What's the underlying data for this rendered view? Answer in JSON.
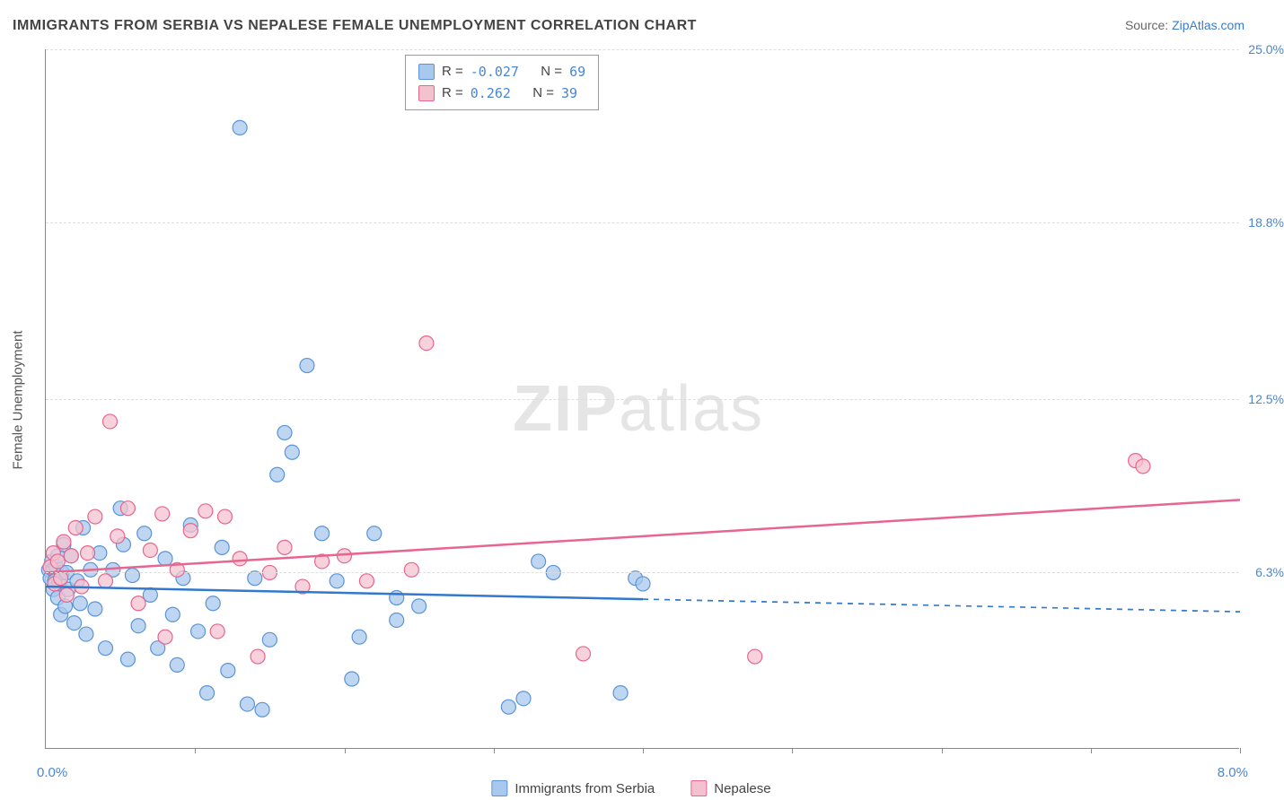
{
  "title": "IMMIGRANTS FROM SERBIA VS NEPALESE FEMALE UNEMPLOYMENT CORRELATION CHART",
  "source_prefix": "Source: ",
  "source_link": "ZipAtlas.com",
  "y_axis_title": "Female Unemployment",
  "watermark_zip": "ZIP",
  "watermark_atlas": "atlas",
  "chart": {
    "type": "scatter",
    "background_color": "#ffffff",
    "grid_color": "#dddddd",
    "axis_color": "#888888",
    "tick_label_color": "#4a86d0",
    "xlim": [
      0,
      8
    ],
    "ylim": [
      0,
      25
    ],
    "x_axis_min_label": "0.0%",
    "x_axis_max_label": "8.0%",
    "y_ticks": [
      {
        "value": 6.3,
        "label": "6.3%"
      },
      {
        "value": 12.5,
        "label": "12.5%"
      },
      {
        "value": 18.8,
        "label": "18.8%"
      },
      {
        "value": 25.0,
        "label": "25.0%"
      }
    ],
    "x_tick_positions": [
      1,
      2,
      3,
      4,
      5,
      6,
      7,
      8
    ],
    "marker_radius": 8,
    "marker_stroke_width": 1.2,
    "trend_line_width": 2.5,
    "series": {
      "serbia": {
        "label": "Immigrants from Serbia",
        "fill": "#a9c8ed",
        "stroke": "#5a94d6",
        "line_color": "#3278cc",
        "R_label": "R = ",
        "R_value": "-0.027",
        "N_label": "N = ",
        "N_value": "69",
        "trend": {
          "y_at_xmin": 5.8,
          "y_at_xmax": 4.9,
          "solid_until_x": 4.0
        },
        "points": [
          {
            "x": 0.02,
            "y": 6.4
          },
          {
            "x": 0.03,
            "y": 6.1
          },
          {
            "x": 0.04,
            "y": 6.7
          },
          {
            "x": 0.05,
            "y": 5.7
          },
          {
            "x": 0.05,
            "y": 6.4
          },
          {
            "x": 0.06,
            "y": 6.0
          },
          {
            "x": 0.07,
            "y": 6.5
          },
          {
            "x": 0.08,
            "y": 5.4
          },
          {
            "x": 0.08,
            "y": 6.9
          },
          {
            "x": 0.09,
            "y": 5.9
          },
          {
            "x": 0.1,
            "y": 4.8
          },
          {
            "x": 0.11,
            "y": 6.3
          },
          {
            "x": 0.12,
            "y": 7.3
          },
          {
            "x": 0.13,
            "y": 5.1
          },
          {
            "x": 0.14,
            "y": 6.3
          },
          {
            "x": 0.15,
            "y": 5.7
          },
          {
            "x": 0.17,
            "y": 6.9
          },
          {
            "x": 0.19,
            "y": 4.5
          },
          {
            "x": 0.21,
            "y": 6.0
          },
          {
            "x": 0.23,
            "y": 5.2
          },
          {
            "x": 0.25,
            "y": 7.9
          },
          {
            "x": 0.27,
            "y": 4.1
          },
          {
            "x": 0.3,
            "y": 6.4
          },
          {
            "x": 0.33,
            "y": 5.0
          },
          {
            "x": 0.36,
            "y": 7.0
          },
          {
            "x": 0.4,
            "y": 3.6
          },
          {
            "x": 0.45,
            "y": 6.4
          },
          {
            "x": 0.5,
            "y": 8.6
          },
          {
            "x": 0.52,
            "y": 7.3
          },
          {
            "x": 0.55,
            "y": 3.2
          },
          {
            "x": 0.58,
            "y": 6.2
          },
          {
            "x": 0.62,
            "y": 4.4
          },
          {
            "x": 0.66,
            "y": 7.7
          },
          {
            "x": 0.7,
            "y": 5.5
          },
          {
            "x": 0.75,
            "y": 3.6
          },
          {
            "x": 0.8,
            "y": 6.8
          },
          {
            "x": 0.85,
            "y": 4.8
          },
          {
            "x": 0.88,
            "y": 3.0
          },
          {
            "x": 0.92,
            "y": 6.1
          },
          {
            "x": 0.97,
            "y": 8.0
          },
          {
            "x": 1.02,
            "y": 4.2
          },
          {
            "x": 1.08,
            "y": 2.0
          },
          {
            "x": 1.12,
            "y": 5.2
          },
          {
            "x": 1.18,
            "y": 7.2
          },
          {
            "x": 1.22,
            "y": 2.8
          },
          {
            "x": 1.3,
            "y": 22.2
          },
          {
            "x": 1.35,
            "y": 1.6
          },
          {
            "x": 1.4,
            "y": 6.1
          },
          {
            "x": 1.45,
            "y": 1.4
          },
          {
            "x": 1.5,
            "y": 3.9
          },
          {
            "x": 1.55,
            "y": 9.8
          },
          {
            "x": 1.6,
            "y": 11.3
          },
          {
            "x": 1.65,
            "y": 10.6
          },
          {
            "x": 1.75,
            "y": 13.7
          },
          {
            "x": 1.85,
            "y": 7.7
          },
          {
            "x": 1.95,
            "y": 6.0
          },
          {
            "x": 2.05,
            "y": 2.5
          },
          {
            "x": 2.1,
            "y": 4.0
          },
          {
            "x": 2.2,
            "y": 7.7
          },
          {
            "x": 2.35,
            "y": 4.6
          },
          {
            "x": 2.35,
            "y": 5.4
          },
          {
            "x": 2.5,
            "y": 5.1
          },
          {
            "x": 3.1,
            "y": 1.5
          },
          {
            "x": 3.2,
            "y": 1.8
          },
          {
            "x": 3.3,
            "y": 6.7
          },
          {
            "x": 3.4,
            "y": 6.3
          },
          {
            "x": 3.85,
            "y": 2.0
          },
          {
            "x": 3.95,
            "y": 6.1
          },
          {
            "x": 4.0,
            "y": 5.9
          }
        ]
      },
      "nepalese": {
        "label": "Nepalese",
        "fill": "#f4c1cf",
        "stroke": "#e7658f",
        "line_color": "#e7658f",
        "R_label": "R = ",
        "R_value": " 0.262",
        "N_label": "N = ",
        "N_value": "39",
        "trend": {
          "y_at_xmin": 6.3,
          "y_at_xmax": 8.9,
          "solid_until_x": 8.0
        },
        "points": [
          {
            "x": 0.03,
            "y": 6.5
          },
          {
            "x": 0.05,
            "y": 7.0
          },
          {
            "x": 0.06,
            "y": 5.9
          },
          {
            "x": 0.08,
            "y": 6.7
          },
          {
            "x": 0.1,
            "y": 6.1
          },
          {
            "x": 0.12,
            "y": 7.4
          },
          {
            "x": 0.14,
            "y": 5.5
          },
          {
            "x": 0.17,
            "y": 6.9
          },
          {
            "x": 0.2,
            "y": 7.9
          },
          {
            "x": 0.24,
            "y": 5.8
          },
          {
            "x": 0.28,
            "y": 7.0
          },
          {
            "x": 0.33,
            "y": 8.3
          },
          {
            "x": 0.4,
            "y": 6.0
          },
          {
            "x": 0.43,
            "y": 11.7
          },
          {
            "x": 0.48,
            "y": 7.6
          },
          {
            "x": 0.55,
            "y": 8.6
          },
          {
            "x": 0.62,
            "y": 5.2
          },
          {
            "x": 0.7,
            "y": 7.1
          },
          {
            "x": 0.78,
            "y": 8.4
          },
          {
            "x": 0.8,
            "y": 4.0
          },
          {
            "x": 0.88,
            "y": 6.4
          },
          {
            "x": 0.97,
            "y": 7.8
          },
          {
            "x": 1.07,
            "y": 8.5
          },
          {
            "x": 1.15,
            "y": 4.2
          },
          {
            "x": 1.2,
            "y": 8.3
          },
          {
            "x": 1.3,
            "y": 6.8
          },
          {
            "x": 1.42,
            "y": 3.3
          },
          {
            "x": 1.5,
            "y": 6.3
          },
          {
            "x": 1.6,
            "y": 7.2
          },
          {
            "x": 1.72,
            "y": 5.8
          },
          {
            "x": 1.85,
            "y": 6.7
          },
          {
            "x": 2.0,
            "y": 6.9
          },
          {
            "x": 2.15,
            "y": 6.0
          },
          {
            "x": 2.45,
            "y": 6.4
          },
          {
            "x": 2.55,
            "y": 14.5
          },
          {
            "x": 3.6,
            "y": 3.4
          },
          {
            "x": 4.75,
            "y": 3.3
          },
          {
            "x": 7.3,
            "y": 10.3
          },
          {
            "x": 7.35,
            "y": 10.1
          }
        ]
      }
    }
  }
}
